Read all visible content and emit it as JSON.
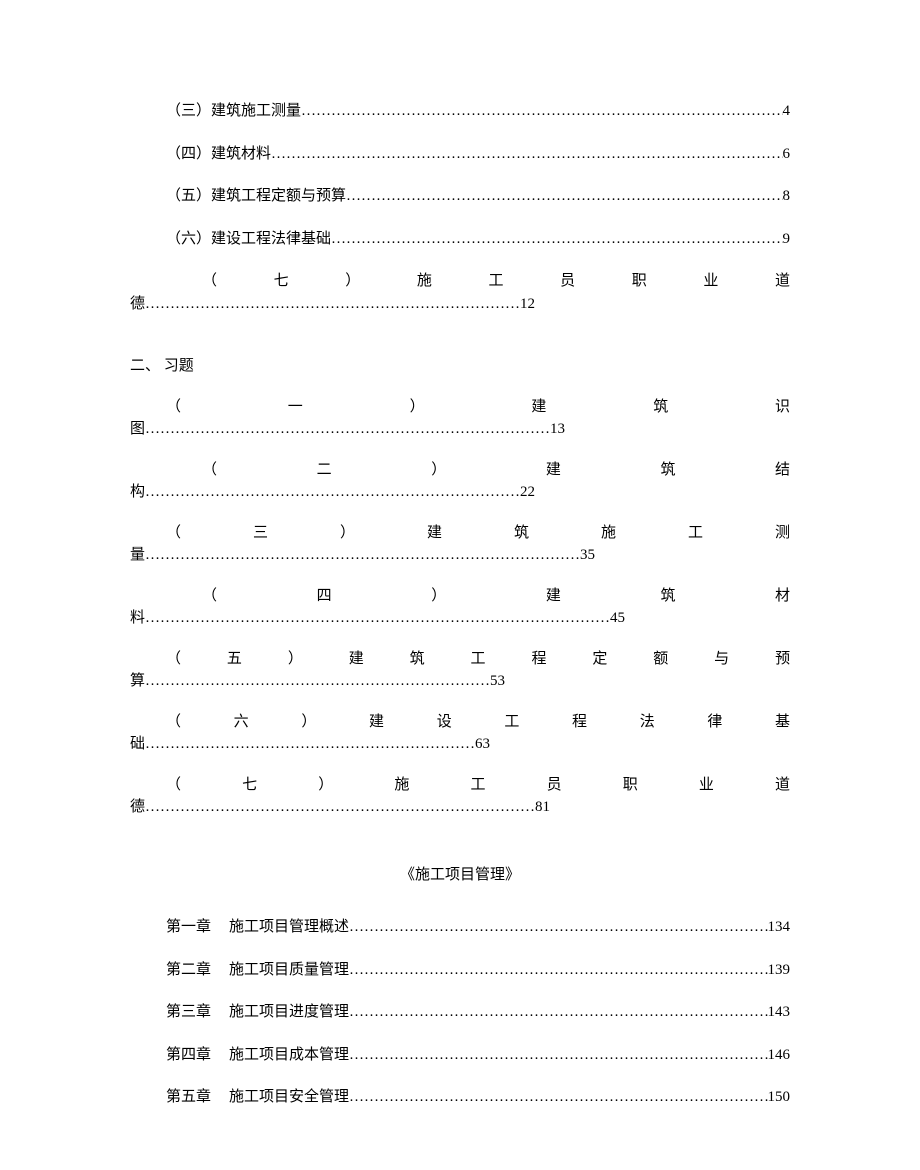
{
  "fontsize_body": 15,
  "color_text": "#000000",
  "color_bg": "#ffffff",
  "simple_rows": [
    {
      "label": "（三）建筑施工测量",
      "page": "4"
    },
    {
      "label": "（四）建筑材料",
      "page": "6"
    },
    {
      "label": "（五）建筑工程定额与预算",
      "page": "8"
    },
    {
      "label": "（六）建设工程法律基础",
      "page": "9"
    }
  ],
  "justify_rows_top": [
    {
      "chars": [
        "（",
        "七",
        "）",
        "施",
        "工",
        "员",
        "职",
        "业",
        "道"
      ],
      "tail_prefix": "德",
      "page": "12"
    }
  ],
  "section2_title": "二、 习题",
  "justify_rows_mid": [
    {
      "chars": [
        "（",
        "一",
        "）",
        "建",
        "筑",
        "识"
      ],
      "tail_prefix": "图",
      "page": "13"
    },
    {
      "chars": [
        "（",
        "二",
        "）",
        "建",
        "筑",
        "结"
      ],
      "tail_prefix": "构",
      "page": "22"
    },
    {
      "chars": [
        "（",
        "三",
        "）",
        "建",
        "筑",
        "施",
        "工",
        "测"
      ],
      "tail_prefix": "量",
      "page": "35"
    },
    {
      "chars": [
        "（",
        "四",
        "）",
        "建",
        "筑",
        "材"
      ],
      "tail_prefix": "料",
      "page": "45"
    },
    {
      "chars": [
        "（",
        "五",
        "）",
        "建",
        "筑",
        "工",
        "程",
        "定",
        "额",
        "与",
        "预"
      ],
      "tail_prefix": "算",
      "page": "53"
    },
    {
      "chars": [
        "（",
        "六",
        "）",
        "建",
        "设",
        "工",
        "程",
        "法",
        "律",
        "基"
      ],
      "tail_prefix": "础",
      "page": "63"
    },
    {
      "chars": [
        "（",
        "七",
        "）",
        "施",
        "工",
        "员",
        "职",
        "业",
        "道"
      ],
      "tail_prefix": "德",
      "page": "81"
    }
  ],
  "book_title": "《施工项目管理》",
  "chapters": [
    {
      "chap": "第一章",
      "title": "施工项目管理概述",
      "page": "134"
    },
    {
      "chap": "第二章",
      "title": "施工项目质量管理",
      "page": "139"
    },
    {
      "chap": "第三章",
      "title": "施工项目进度管理",
      "page": "143"
    },
    {
      "chap": "第四章",
      "title": "施工项目成本管理",
      "page": "146"
    },
    {
      "chap": "第五章",
      "title": "施工项目安全管理",
      "page": "150"
    }
  ],
  "dot_char": "…",
  "dot_fill": "……………………………………………………………………………………………………………………………………………………"
}
